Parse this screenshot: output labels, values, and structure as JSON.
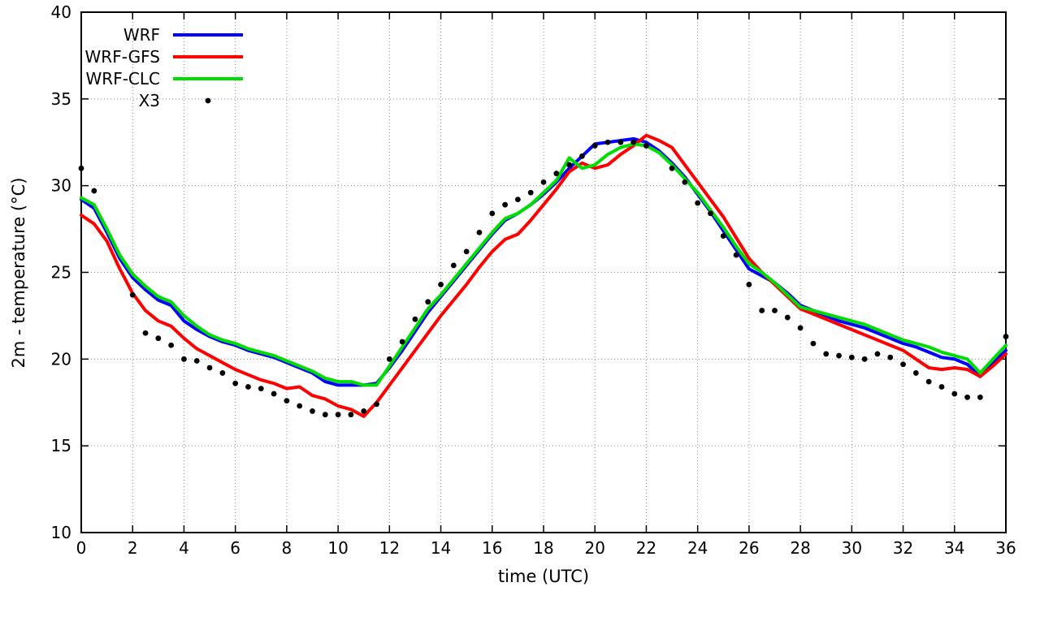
{
  "chart_data": {
    "type": "line",
    "title": "",
    "xlabel": "time (UTC)",
    "ylabel": "2m - temperature (°C)",
    "xlim": [
      0,
      36
    ],
    "ylim": [
      10,
      40
    ],
    "xticks": [
      0,
      2,
      4,
      6,
      8,
      10,
      12,
      14,
      16,
      18,
      20,
      22,
      24,
      26,
      28,
      30,
      32,
      34,
      36
    ],
    "yticks": [
      10,
      15,
      20,
      25,
      30,
      35,
      40
    ],
    "grid": true,
    "grid_color": "#8a8a8a",
    "legend_position": "top-left",
    "x": [
      0,
      0.5,
      1,
      1.5,
      2,
      2.5,
      3,
      3.5,
      4,
      4.5,
      5,
      5.5,
      6,
      6.5,
      7,
      7.5,
      8,
      8.5,
      9,
      9.5,
      10,
      10.5,
      11,
      11.5,
      12,
      12.5,
      13,
      13.5,
      14,
      14.5,
      15,
      15.5,
      16,
      16.5,
      17,
      17.5,
      18,
      18.5,
      19,
      19.5,
      20,
      20.5,
      21,
      21.5,
      22,
      22.5,
      23,
      23.5,
      24,
      24.5,
      25,
      25.5,
      26,
      26.5,
      27,
      27.5,
      28,
      28.5,
      29,
      29.5,
      30,
      30.5,
      31,
      31.5,
      32,
      32.5,
      33,
      33.5,
      34,
      34.5,
      35,
      35.5,
      36
    ],
    "series": [
      {
        "name": "WRF",
        "kind": "line",
        "color": "#0000ff",
        "width": 4,
        "values": [
          29.2,
          28.7,
          27.3,
          25.8,
          24.7,
          24.0,
          23.4,
          23.1,
          22.2,
          21.7,
          21.3,
          21.0,
          20.8,
          20.5,
          20.3,
          20.1,
          19.8,
          19.5,
          19.2,
          18.7,
          18.5,
          18.5,
          18.5,
          18.6,
          19.5,
          20.5,
          21.6,
          22.7,
          23.6,
          24.5,
          25.4,
          26.3,
          27.2,
          28.0,
          28.4,
          28.9,
          29.5,
          30.2,
          31.0,
          31.7,
          32.4,
          32.5,
          32.6,
          32.7,
          32.5,
          32.0,
          31.3,
          30.5,
          29.5,
          28.5,
          27.4,
          26.3,
          25.2,
          24.8,
          24.4,
          23.8,
          23.1,
          22.8,
          22.5,
          22.2,
          22.0,
          21.8,
          21.5,
          21.2,
          20.9,
          20.7,
          20.4,
          20.1,
          20.0,
          19.7,
          19.0,
          19.8,
          20.5
        ]
      },
      {
        "name": "WRF-GFS",
        "kind": "line",
        "color": "#ff0000",
        "width": 4,
        "values": [
          28.3,
          27.8,
          26.8,
          25.2,
          23.8,
          22.8,
          22.2,
          21.9,
          21.2,
          20.6,
          20.2,
          19.8,
          19.4,
          19.1,
          18.8,
          18.6,
          18.3,
          18.4,
          17.9,
          17.7,
          17.3,
          17.1,
          16.7,
          17.5,
          18.5,
          19.5,
          20.5,
          21.5,
          22.5,
          23.4,
          24.3,
          25.3,
          26.2,
          26.9,
          27.2,
          28.0,
          28.9,
          29.8,
          30.8,
          31.3,
          31.0,
          31.2,
          31.8,
          32.3,
          32.9,
          32.6,
          32.2,
          31.2,
          30.2,
          29.2,
          28.2,
          27.0,
          25.8,
          25.0,
          24.3,
          23.6,
          22.9,
          22.6,
          22.3,
          22.0,
          21.7,
          21.4,
          21.1,
          20.8,
          20.5,
          20.0,
          19.5,
          19.4,
          19.5,
          19.4,
          19.0,
          19.6,
          20.3
        ]
      },
      {
        "name": "WRF-CLC",
        "kind": "line",
        "color": "#00dd00",
        "width": 4,
        "values": [
          29.3,
          28.9,
          27.5,
          26.0,
          24.9,
          24.2,
          23.6,
          23.3,
          22.5,
          21.9,
          21.4,
          21.1,
          20.9,
          20.6,
          20.4,
          20.2,
          19.9,
          19.6,
          19.3,
          18.9,
          18.7,
          18.7,
          18.5,
          18.5,
          19.6,
          20.7,
          21.8,
          22.9,
          23.7,
          24.6,
          25.5,
          26.4,
          27.3,
          28.1,
          28.4,
          28.9,
          29.6,
          30.3,
          31.6,
          31.0,
          31.2,
          31.8,
          32.2,
          32.4,
          32.3,
          31.9,
          31.2,
          30.4,
          29.6,
          28.6,
          27.6,
          26.5,
          25.5,
          25.0,
          24.4,
          23.7,
          23.0,
          22.8,
          22.6,
          22.4,
          22.2,
          22.0,
          21.7,
          21.4,
          21.1,
          20.9,
          20.7,
          20.4,
          20.2,
          20.0,
          19.2,
          20.0,
          20.8
        ]
      },
      {
        "name": "X3",
        "kind": "scatter",
        "color": "#000000",
        "marker": "dot",
        "marker_radius": 3.4,
        "points": [
          [
            0,
            31.0
          ],
          [
            0.5,
            29.7
          ],
          [
            2,
            23.7
          ],
          [
            2.5,
            21.5
          ],
          [
            3,
            21.2
          ],
          [
            3.5,
            20.8
          ],
          [
            4,
            20.0
          ],
          [
            4.5,
            19.9
          ],
          [
            5,
            19.5
          ],
          [
            5.5,
            19.2
          ],
          [
            6,
            18.6
          ],
          [
            6.5,
            18.4
          ],
          [
            7,
            18.3
          ],
          [
            7.5,
            18.0
          ],
          [
            8,
            17.6
          ],
          [
            8.5,
            17.3
          ],
          [
            9,
            17.0
          ],
          [
            9.5,
            16.8
          ],
          [
            10,
            16.8
          ],
          [
            10.5,
            16.8
          ],
          [
            11,
            17.0
          ],
          [
            11.5,
            17.4
          ],
          [
            12,
            20.0
          ],
          [
            12.5,
            21.0
          ],
          [
            13,
            22.3
          ],
          [
            13.5,
            23.3
          ],
          [
            14,
            24.3
          ],
          [
            14.5,
            25.4
          ],
          [
            15,
            26.2
          ],
          [
            15.5,
            27.3
          ],
          [
            16,
            28.4
          ],
          [
            16.5,
            28.9
          ],
          [
            17,
            29.2
          ],
          [
            17.5,
            29.6
          ],
          [
            18,
            30.2
          ],
          [
            18.5,
            30.7
          ],
          [
            19,
            31.2
          ],
          [
            19.5,
            31.7
          ],
          [
            20,
            32.3
          ],
          [
            20.5,
            32.5
          ],
          [
            21,
            32.5
          ],
          [
            21.5,
            32.5
          ],
          [
            22,
            32.3
          ],
          [
            23,
            31.0
          ],
          [
            23.5,
            30.2
          ],
          [
            24,
            29.0
          ],
          [
            24.5,
            28.4
          ],
          [
            25,
            27.1
          ],
          [
            25.5,
            26.0
          ],
          [
            26,
            24.3
          ],
          [
            26.5,
            22.8
          ],
          [
            27,
            22.8
          ],
          [
            27.5,
            22.4
          ],
          [
            28,
            21.8
          ],
          [
            28.5,
            20.9
          ],
          [
            29,
            20.3
          ],
          [
            29.5,
            20.2
          ],
          [
            30,
            20.1
          ],
          [
            30.5,
            20.0
          ],
          [
            31,
            20.3
          ],
          [
            31.5,
            20.1
          ],
          [
            32,
            19.7
          ],
          [
            32.5,
            19.2
          ],
          [
            33,
            18.7
          ],
          [
            33.5,
            18.4
          ],
          [
            34,
            18.0
          ],
          [
            34.5,
            17.8
          ],
          [
            35,
            17.8
          ],
          [
            36,
            21.3
          ]
        ]
      }
    ]
  }
}
